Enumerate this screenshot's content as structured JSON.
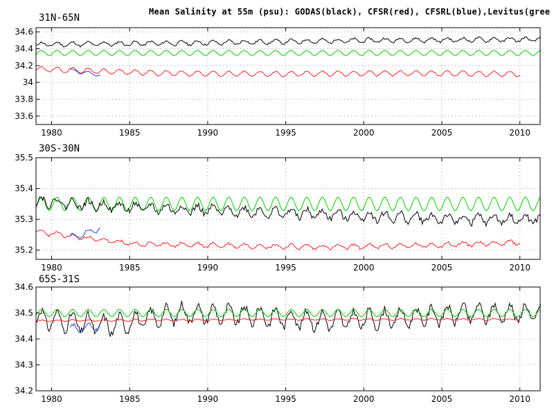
{
  "title": "Mean Salinity at 55m (psu): GODAS(black), CFSR(red), CFSRL(blue),Levitus(gree",
  "colors": {
    "GODAS": "#000000",
    "CFSR": "#ff2020",
    "CFSRL": "#2040e0",
    "Levitus": "#00cc00",
    "grid": "#999999"
  },
  "chart_data": [
    {
      "type": "line",
      "panel_label": "31N-65N",
      "xlim": [
        1979,
        2011.3
      ],
      "ylim": [
        33.5,
        34.65
      ],
      "xticks": [
        1980,
        1985,
        1990,
        1995,
        2000,
        2005,
        2010
      ],
      "yticks": [
        33.6,
        33.8,
        34,
        34.2,
        34.4,
        34.6
      ],
      "ytick_labels": [
        "33.6",
        "33.8",
        "34",
        "34.2",
        "34.4",
        "34.6"
      ],
      "grid": true,
      "series": [
        {
          "name": "GODAS",
          "color": "#000000",
          "x_start": 1979.0,
          "x_end": 2011.3,
          "base": [
            34.45,
            34.47,
            34.5,
            34.51
          ],
          "seasonal_amp": 0.025,
          "noise": 0.012,
          "seed": 11
        },
        {
          "name": "Levitus",
          "color": "#00cc00",
          "x_start": 1979.0,
          "x_end": 2011.3,
          "base": [
            34.35,
            34.35
          ],
          "seasonal_amp": 0.03,
          "noise": 0.0,
          "seed": 12
        },
        {
          "name": "CFSR",
          "color": "#ff2020",
          "x_start": 1979.0,
          "x_end": 2010.0,
          "base": [
            34.16,
            34.11,
            34.1,
            34.11,
            34.1
          ],
          "seasonal_amp": 0.03,
          "noise": 0.006,
          "seed": 13
        },
        {
          "name": "CFSRL",
          "color": "#2040e0",
          "x_start": 1981.2,
          "x_end": 1983.1,
          "base": [
            34.14,
            34.09
          ],
          "seasonal_amp": 0.02,
          "noise": 0.005,
          "seed": 14
        }
      ]
    },
    {
      "type": "line",
      "panel_label": "30S-30N",
      "xlim": [
        1979,
        2011.3
      ],
      "ylim": [
        35.17,
        35.5
      ],
      "xticks": [
        1980,
        1985,
        1990,
        1995,
        2000,
        2005,
        2010
      ],
      "yticks": [
        35.2,
        35.3,
        35.4,
        35.5
      ],
      "ytick_labels": [
        "35.2",
        "35.3",
        "35.4",
        "35.5"
      ],
      "grid": true,
      "series": [
        {
          "name": "Levitus",
          "color": "#00cc00",
          "x_start": 1979.0,
          "x_end": 2011.3,
          "base": [
            35.35,
            35.35
          ],
          "seasonal_amp": 0.022,
          "noise": 0.0,
          "seed": 21
        },
        {
          "name": "GODAS",
          "color": "#000000",
          "x_start": 1979.0,
          "x_end": 2011.3,
          "base": [
            35.36,
            35.34,
            35.33,
            35.32,
            35.31,
            35.3,
            35.3
          ],
          "seasonal_amp": 0.014,
          "noise": 0.01,
          "seed": 22
        },
        {
          "name": "CFSR",
          "color": "#ff2020",
          "x_start": 1979.0,
          "x_end": 2010.0,
          "base": [
            35.26,
            35.22,
            35.215,
            35.21,
            35.215,
            35.225
          ],
          "seasonal_amp": 0.007,
          "noise": 0.004,
          "seed": 23
        },
        {
          "name": "CFSRL",
          "color": "#2040e0",
          "x_start": 1981.2,
          "x_end": 1983.1,
          "base": [
            35.24,
            35.27
          ],
          "seasonal_amp": 0.008,
          "noise": 0.004,
          "seed": 24
        }
      ]
    },
    {
      "type": "line",
      "panel_label": "65S-31S",
      "xlim": [
        1979,
        2011.3
      ],
      "ylim": [
        34.2,
        34.6
      ],
      "xticks": [
        1980,
        1985,
        1990,
        1995,
        2000,
        2005,
        2010
      ],
      "yticks": [
        34.2,
        34.3,
        34.4,
        34.5,
        34.6
      ],
      "ytick_labels": [
        "34.2",
        "34.3",
        "34.4",
        "34.5",
        "34.6"
      ],
      "grid": true,
      "series": [
        {
          "name": "GODAS",
          "color": "#000000",
          "x_start": 1979.0,
          "x_end": 2011.3,
          "base": [
            34.48,
            34.45,
            34.5,
            34.49,
            34.47,
            34.48,
            34.5,
            34.5
          ],
          "seasonal_amp": 0.035,
          "noise": 0.015,
          "seed": 31
        },
        {
          "name": "Levitus",
          "color": "#00cc00",
          "x_start": 1979.0,
          "x_end": 2011.3,
          "base": [
            34.5,
            34.5
          ],
          "seasonal_amp": 0.014,
          "noise": 0.0,
          "seed": 32
        },
        {
          "name": "CFSR",
          "color": "#ff2020",
          "x_start": 1979.0,
          "x_end": 2010.0,
          "base": [
            34.47,
            34.475,
            34.475
          ],
          "seasonal_amp": 0.003,
          "noise": 0.002,
          "seed": 33
        },
        {
          "name": "CFSRL",
          "color": "#2040e0",
          "x_start": 1981.2,
          "x_end": 1983.1,
          "base": [
            34.44,
            34.45
          ],
          "seasonal_amp": 0.015,
          "noise": 0.006,
          "seed": 34
        }
      ]
    }
  ]
}
